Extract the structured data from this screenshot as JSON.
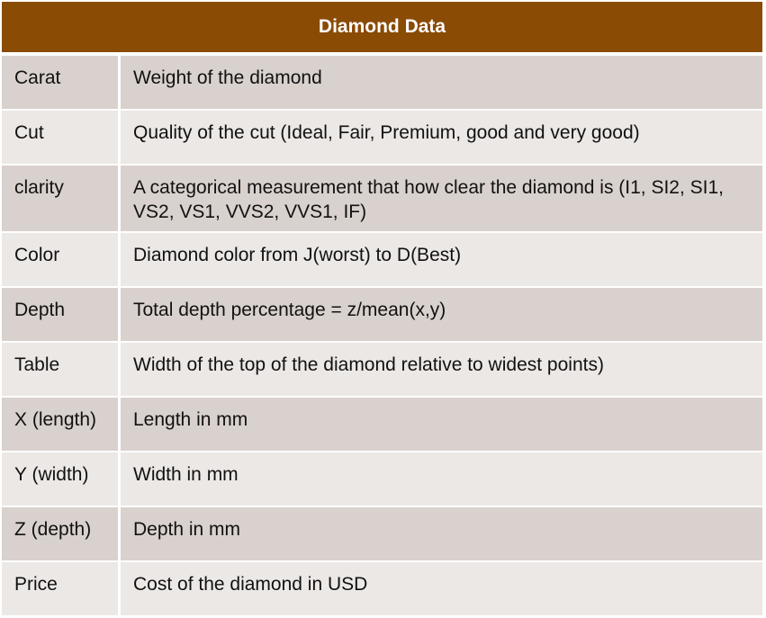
{
  "table": {
    "title": "Diamond Data",
    "rows": [
      {
        "attribute": "Carat",
        "description": "Weight of the diamond"
      },
      {
        "attribute": "Cut",
        "description": "Quality of the cut (Ideal, Fair, Premium, good and very good)"
      },
      {
        "attribute": "clarity",
        "description": "A categorical measurement that how clear the diamond is (I1, SI2, SI1, VS2, VS1, VVS2, VVS1, IF)"
      },
      {
        "attribute": "Color",
        "description": "Diamond color from J(worst) to D(Best)"
      },
      {
        "attribute": "Depth",
        "description": "Total depth percentage = z/mean(x,y)"
      },
      {
        "attribute": "Table",
        "description": "Width of the top of the diamond relative to widest points)"
      },
      {
        "attribute": "X (length)",
        "description": "Length in mm"
      },
      {
        "attribute": "Y (width)",
        "description": "Width in mm"
      },
      {
        "attribute": "Z (depth)",
        "description": "Depth in mm"
      },
      {
        "attribute": "Price",
        "description": "Cost of the diamond in USD"
      }
    ]
  },
  "colors": {
    "header_bg": "#8a4b05",
    "row_dark": "#d9d1cd",
    "row_light": "#ece8e6"
  }
}
